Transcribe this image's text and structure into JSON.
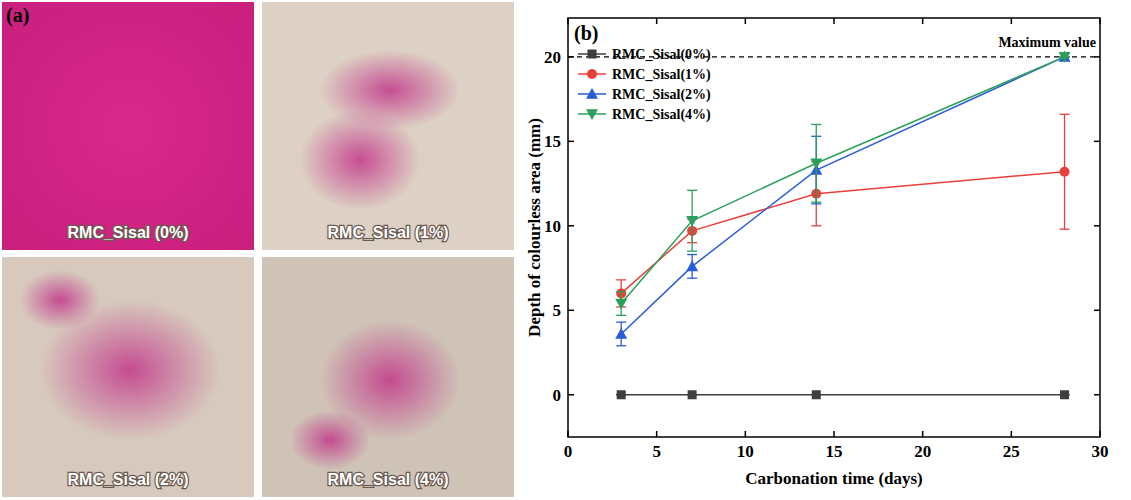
{
  "panel_a": {
    "letter": "(a)",
    "labels": [
      "RMC_Sisal (0%)",
      "RMC_Sisal (1%)",
      "RMC_Sisal (2%)",
      "RMC_Sisal (4%)"
    ]
  },
  "chart_data": {
    "type": "line",
    "panel_label": "(b)",
    "x_label": "Carbonation time (days)",
    "y_label": "Depth of colourless area (mm)",
    "x": [
      3,
      7,
      14,
      28
    ],
    "xlim": [
      0,
      30
    ],
    "xticks": [
      0,
      5,
      10,
      15,
      20,
      25,
      30
    ],
    "ylim": [
      -2.5,
      22.3
    ],
    "yticks": [
      0,
      5,
      10,
      15,
      20
    ],
    "legend": "upper left",
    "grid": false,
    "annotations": [
      {
        "y": 20,
        "label": "Maximum value",
        "line_style": "dashed"
      }
    ],
    "series": [
      {
        "name": "RMC_Sisal(0%)",
        "color": "#3f3f3f",
        "marker": "square",
        "line_style": "solid",
        "values": [
          0,
          0,
          0,
          0
        ],
        "errors": [
          0,
          0,
          0,
          0
        ]
      },
      {
        "name": "RMC_Sisal(1%)",
        "color": "#e8413a",
        "marker": "circle",
        "line_style": "solid",
        "values": [
          6.0,
          9.7,
          11.9,
          13.2
        ],
        "errors": [
          0.8,
          0.7,
          1.9,
          3.4
        ]
      },
      {
        "name": "RMC_Sisal(2%)",
        "color": "#2a5cd6",
        "marker": "triangle-up",
        "line_style": "solid",
        "values": [
          3.6,
          7.6,
          13.3,
          20.0
        ],
        "errors": [
          0.7,
          0.7,
          2.0,
          0
        ]
      },
      {
        "name": "RMC_Sisal(4%)",
        "color": "#2ca05a",
        "marker": "triangle-down",
        "line_style": "solid",
        "values": [
          5.4,
          10.3,
          13.7,
          20.0
        ],
        "errors": [
          0.7,
          1.8,
          2.3,
          0
        ]
      }
    ]
  }
}
